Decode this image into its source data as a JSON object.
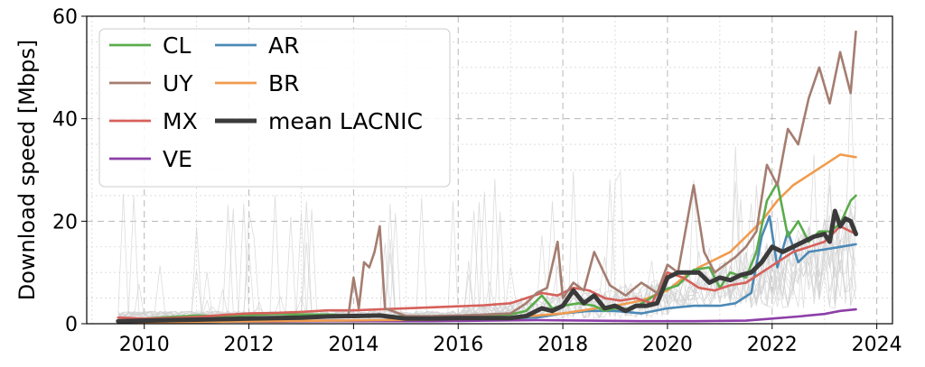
{
  "chart_data": {
    "type": "line",
    "title": "",
    "xlabel": "",
    "ylabel": "Download speed [Mbps]",
    "xlim": [
      2008.9,
      2024.3
    ],
    "ylim": [
      0,
      60
    ],
    "xticks": [
      "2010",
      "2012",
      "2014",
      "2016",
      "2018",
      "2020",
      "2022",
      "2024"
    ],
    "yticks": [
      "0",
      "20",
      "40",
      "60"
    ],
    "grid": true,
    "legend_position": "top-left",
    "series": [
      {
        "name": "CL",
        "color": "#5aac4c",
        "x": [
          2009.5,
          2010.0,
          2010.5,
          2011.0,
          2011.5,
          2012.0,
          2012.5,
          2013.0,
          2013.5,
          2014.0,
          2014.5,
          2015.0,
          2015.5,
          2016.0,
          2016.5,
          2017.0,
          2017.3,
          2017.6,
          2017.8,
          2018.0,
          2018.3,
          2018.6,
          2018.8,
          2019.0,
          2019.3,
          2019.6,
          2019.9,
          2020.2,
          2020.5,
          2020.8,
          2021.0,
          2021.2,
          2021.5,
          2021.7,
          2021.9,
          2022.1,
          2022.3,
          2022.5,
          2022.7,
          2022.9,
          2023.1,
          2023.3,
          2023.5,
          2023.6
        ],
        "y": [
          0.5,
          1.0,
          1.3,
          1.6,
          1.5,
          1.7,
          1.9,
          1.8,
          1.8,
          1.6,
          1.5,
          1.4,
          1.4,
          1.5,
          1.6,
          1.8,
          2.5,
          5.5,
          3.0,
          3.5,
          4.0,
          3.5,
          2.5,
          3.0,
          2.8,
          4.5,
          6.5,
          7.5,
          10.5,
          11.0,
          7.0,
          10.0,
          9.0,
          14.0,
          24.0,
          27.5,
          17.0,
          20.0,
          16.0,
          18.0,
          18.0,
          19.5,
          24.0,
          25.0
        ]
      },
      {
        "name": "UY",
        "color": "#a57d70",
        "x": [
          2009.5,
          2010.0,
          2010.5,
          2011.0,
          2011.5,
          2012.0,
          2012.5,
          2013.0,
          2013.5,
          2013.9,
          2014.0,
          2014.1,
          2014.2,
          2014.3,
          2014.4,
          2014.5,
          2014.6,
          2015.0,
          2015.5,
          2016.0,
          2016.5,
          2017.0,
          2017.3,
          2017.5,
          2017.7,
          2017.9,
          2018.0,
          2018.2,
          2018.4,
          2018.6,
          2018.9,
          2019.2,
          2019.5,
          2019.8,
          2020.0,
          2020.2,
          2020.5,
          2020.7,
          2020.9,
          2021.1,
          2021.3,
          2021.5,
          2021.7,
          2021.9,
          2022.1,
          2022.3,
          2022.5,
          2022.7,
          2022.9,
          2023.1,
          2023.3,
          2023.5,
          2023.6
        ],
        "y": [
          0.5,
          0.6,
          0.7,
          0.6,
          0.8,
          0.9,
          1.0,
          1.2,
          1.3,
          1.5,
          9.0,
          3.0,
          12.0,
          11.0,
          14.0,
          19.0,
          3.0,
          1.5,
          1.5,
          1.6,
          1.8,
          2.0,
          4.0,
          6.0,
          7.0,
          16.0,
          5.0,
          8.0,
          6.5,
          14.0,
          7.5,
          5.5,
          8.0,
          6.0,
          11.5,
          10.0,
          27.0,
          14.0,
          10.0,
          11.5,
          13.0,
          15.0,
          18.0,
          31.0,
          27.0,
          38.0,
          35.0,
          44.0,
          50.0,
          43.0,
          53.0,
          45.0,
          57.0
        ]
      },
      {
        "name": "MX",
        "color": "#d6605a",
        "x": [
          2009.5,
          2010.0,
          2010.5,
          2011.0,
          2011.5,
          2012.0,
          2012.5,
          2013.0,
          2013.5,
          2014.0,
          2014.5,
          2015.0,
          2015.5,
          2016.0,
          2016.5,
          2017.0,
          2017.3,
          2017.6,
          2017.9,
          2018.2,
          2018.5,
          2018.8,
          2019.1,
          2019.4,
          2019.7,
          2020.0,
          2020.3,
          2020.6,
          2020.9,
          2021.2,
          2021.5,
          2021.8,
          2022.1,
          2022.4,
          2022.7,
          2023.0,
          2023.3,
          2023.6
        ],
        "y": [
          1.2,
          1.0,
          1.1,
          1.3,
          1.7,
          2.0,
          2.1,
          2.3,
          2.6,
          2.6,
          2.8,
          3.0,
          3.2,
          3.4,
          3.6,
          4.0,
          5.0,
          6.0,
          5.5,
          7.0,
          6.5,
          5.0,
          4.5,
          5.0,
          4.0,
          10.0,
          9.0,
          7.0,
          6.5,
          7.5,
          8.0,
          10.0,
          12.0,
          14.0,
          15.0,
          16.0,
          19.0,
          17.5
        ]
      },
      {
        "name": "VE",
        "color": "#8d3fa8",
        "x": [
          2009.5,
          2010.5,
          2011.5,
          2012.5,
          2013.5,
          2014.5,
          2015.5,
          2016.5,
          2017.5,
          2018.5,
          2019.5,
          2020.5,
          2021.5,
          2022.0,
          2022.5,
          2023.0,
          2023.3,
          2023.6
        ],
        "y": [
          0.2,
          0.3,
          0.4,
          0.4,
          0.5,
          0.5,
          0.5,
          0.6,
          0.7,
          0.6,
          0.5,
          0.5,
          0.6,
          1.0,
          1.4,
          1.9,
          2.5,
          2.8
        ]
      },
      {
        "name": "AR",
        "color": "#4b89b6",
        "x": [
          2009.5,
          2010.5,
          2011.5,
          2012.5,
          2013.5,
          2014.5,
          2015.5,
          2016.5,
          2017.5,
          2018.0,
          2018.5,
          2019.0,
          2019.5,
          2020.0,
          2020.5,
          2021.0,
          2021.3,
          2021.6,
          2021.8,
          2021.95,
          2022.1,
          2022.3,
          2022.5,
          2022.7,
          2023.0,
          2023.3,
          2023.6
        ],
        "y": [
          0.2,
          0.3,
          0.4,
          0.5,
          0.6,
          0.7,
          0.9,
          1.0,
          1.2,
          2.0,
          2.5,
          2.5,
          2.0,
          3.0,
          3.5,
          3.5,
          4.0,
          6.0,
          17.0,
          21.0,
          11.0,
          18.0,
          12.0,
          14.0,
          14.5,
          15.0,
          15.5
        ]
      },
      {
        "name": "BR",
        "color": "#f19b4e",
        "x": [
          2009.5,
          2010.5,
          2011.5,
          2012.5,
          2013.5,
          2014.5,
          2015.5,
          2016.5,
          2017.0,
          2017.5,
          2018.0,
          2018.5,
          2019.0,
          2019.5,
          2020.0,
          2020.3,
          2020.6,
          2020.9,
          2021.2,
          2021.5,
          2021.8,
          2022.1,
          2022.4,
          2022.7,
          2023.0,
          2023.3,
          2023.6
        ],
        "y": [
          0.2,
          0.3,
          0.4,
          0.5,
          0.6,
          0.7,
          0.8,
          1.0,
          1.2,
          1.6,
          2.0,
          2.8,
          3.5,
          4.5,
          6.5,
          9.0,
          11.0,
          12.5,
          14.0,
          17.0,
          20.0,
          24.0,
          27.0,
          29.0,
          31.0,
          33.0,
          32.5
        ]
      },
      {
        "name": "mean LACNIC",
        "color": "#3a3a3a",
        "x": [
          2009.5,
          2010.0,
          2010.5,
          2011.0,
          2011.5,
          2012.0,
          2012.5,
          2013.0,
          2013.5,
          2014.0,
          2014.5,
          2015.0,
          2015.5,
          2016.0,
          2016.5,
          2017.0,
          2017.3,
          2017.6,
          2017.8,
          2018.0,
          2018.2,
          2018.4,
          2018.6,
          2018.8,
          2019.0,
          2019.2,
          2019.4,
          2019.6,
          2019.8,
          2020.0,
          2020.2,
          2020.4,
          2020.6,
          2020.8,
          2021.0,
          2021.2,
          2021.4,
          2021.6,
          2021.8,
          2022.0,
          2022.2,
          2022.4,
          2022.6,
          2022.8,
          2023.0,
          2023.1,
          2023.2,
          2023.3,
          2023.4,
          2023.5,
          2023.6
        ],
        "y": [
          0.5,
          0.6,
          0.7,
          0.8,
          0.9,
          1.0,
          1.1,
          1.2,
          1.4,
          1.5,
          1.6,
          1.0,
          1.0,
          1.1,
          1.1,
          1.1,
          1.5,
          3.0,
          2.5,
          3.5,
          6.5,
          4.0,
          5.5,
          3.0,
          3.5,
          2.5,
          3.5,
          3.5,
          4.0,
          9.0,
          10.0,
          10.0,
          10.0,
          8.0,
          9.0,
          8.5,
          9.5,
          10.0,
          12.0,
          15.0,
          14.0,
          15.0,
          16.0,
          17.0,
          17.5,
          16.0,
          22.0,
          19.0,
          20.5,
          20.0,
          17.5
        ]
      }
    ],
    "legend": [
      {
        "label": "CL",
        "color": "#5aac4c"
      },
      {
        "label": "AR",
        "color": "#4b89b6"
      },
      {
        "label": "UY",
        "color": "#a57d70"
      },
      {
        "label": "BR",
        "color": "#f19b4e"
      },
      {
        "label": "MX",
        "color": "#d6605a"
      },
      {
        "label": "mean LACNIC",
        "color": "#3a3a3a"
      },
      {
        "label": "VE",
        "color": "#8d3fa8"
      }
    ]
  }
}
